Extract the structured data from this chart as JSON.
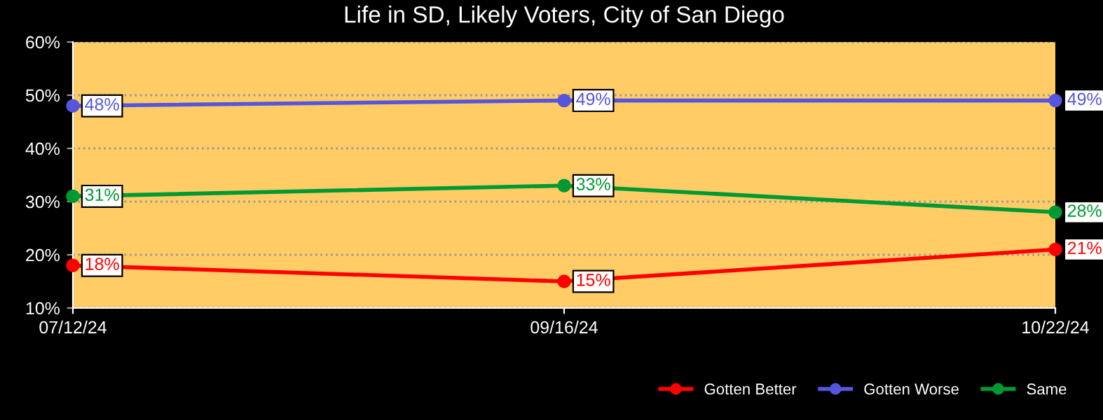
{
  "chart_data": {
    "type": "line",
    "title": "Life in SD, Likely Voters, City of San Diego",
    "categories": [
      "07/12/24",
      "09/16/24",
      "10/22/24"
    ],
    "series": [
      {
        "name": "Gotten Better",
        "color": "#ff0000",
        "values": [
          18,
          15,
          21
        ],
        "value_labels": [
          "18%",
          "15%",
          "21%"
        ]
      },
      {
        "name": "Gotten Worse",
        "color": "#5555dd",
        "values": [
          48,
          49,
          49
        ],
        "value_labels": [
          "48%",
          "49%",
          "49%"
        ]
      },
      {
        "name": "Same",
        "color": "#009933",
        "values": [
          31,
          33,
          28
        ],
        "value_labels": [
          "31%",
          "33%",
          "28%"
        ]
      }
    ],
    "ylim": [
      10,
      60
    ],
    "yticks": [
      {
        "value": 10,
        "label": "10%"
      },
      {
        "value": 20,
        "label": "20%"
      },
      {
        "value": 30,
        "label": "30%"
      },
      {
        "value": 40,
        "label": "40%"
      },
      {
        "value": 50,
        "label": "50%"
      },
      {
        "value": 60,
        "label": "60%"
      }
    ],
    "grid": "y",
    "legend": "bottom right",
    "marker": "circle",
    "line_style": "solid"
  }
}
